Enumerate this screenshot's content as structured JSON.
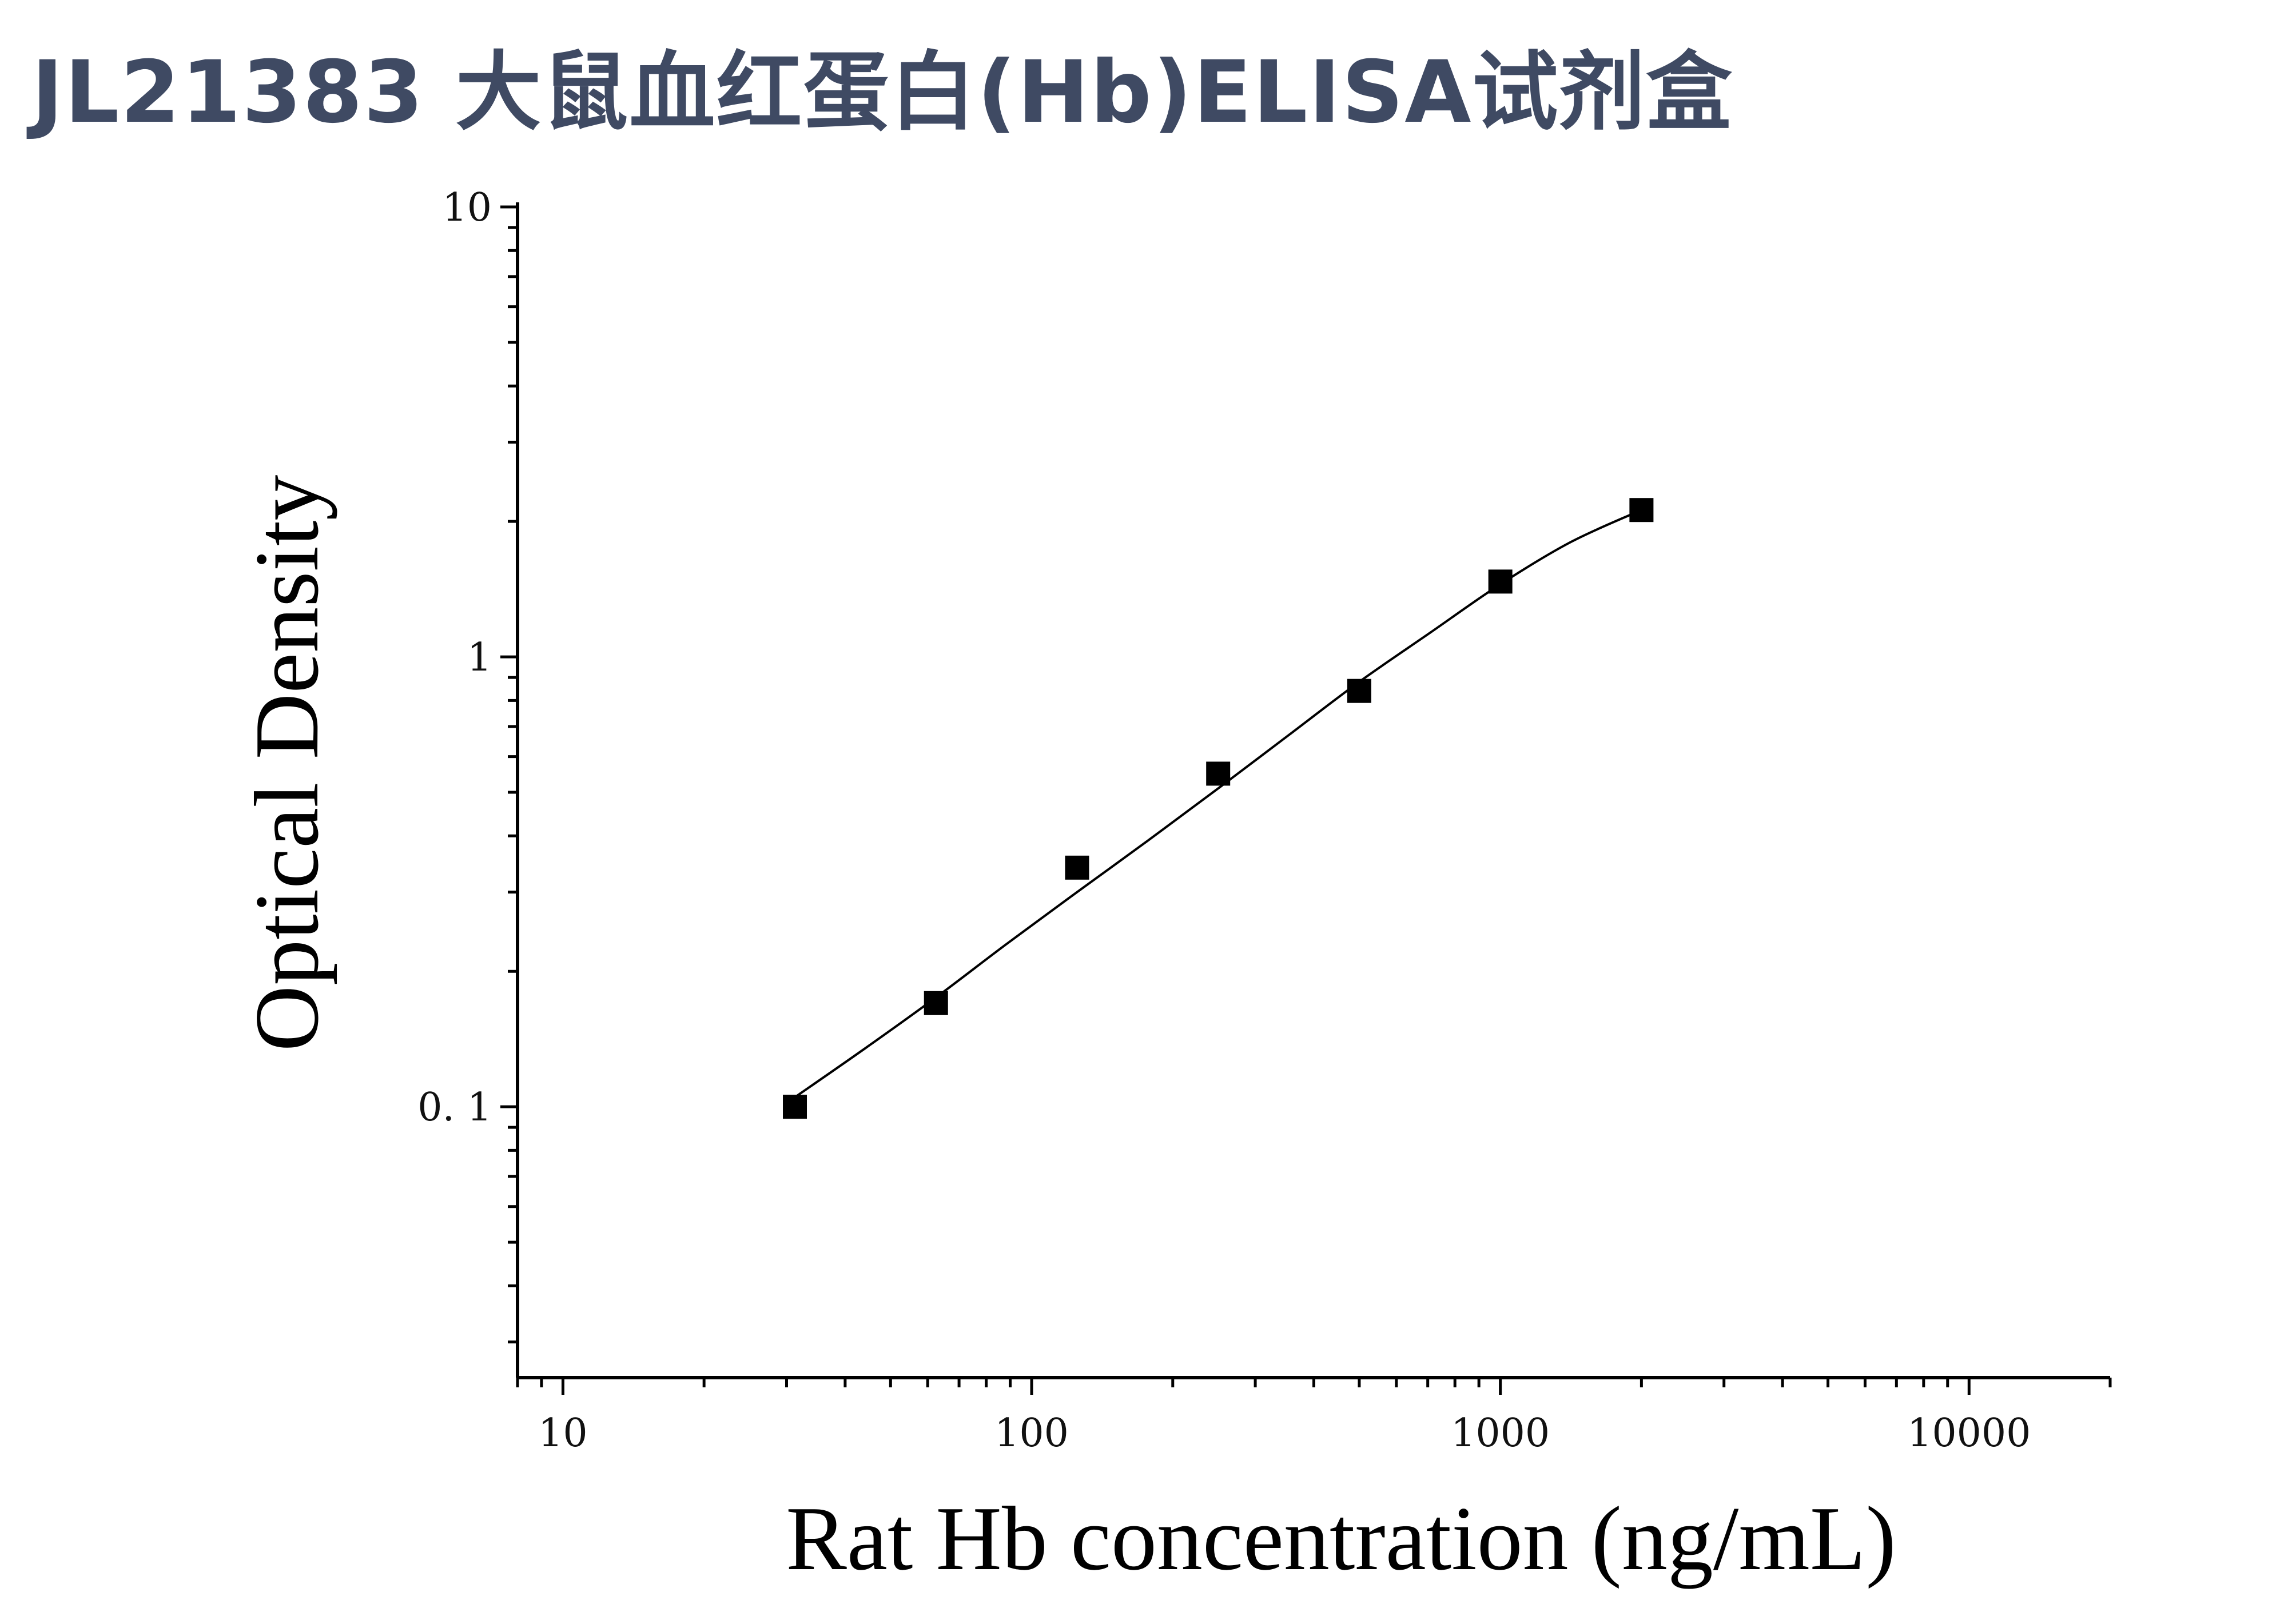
{
  "title": "JL21383 大鼠血红蛋白(Hb)ELISA试剂盒",
  "chart_data": {
    "type": "scatter",
    "xlabel": "Rat Hb concentration (ng/mL)",
    "ylabel": "Optical Density",
    "xscale": "log",
    "yscale": "log",
    "xlim": [
      8,
      20000
    ],
    "ylim": [
      0.025,
      10
    ],
    "x_ticks": [
      {
        "value": 10,
        "label": "10"
      },
      {
        "value": 100,
        "label": "100"
      },
      {
        "value": 1000,
        "label": "1000"
      },
      {
        "value": 10000,
        "label": "10000"
      }
    ],
    "y_ticks": [
      {
        "value": 0.1,
        "label": "0. 1"
      },
      {
        "value": 1,
        "label": "1"
      },
      {
        "value": 10,
        "label": "10"
      }
    ],
    "marker": "square",
    "marker_color": "#000000",
    "points": [
      {
        "x": 31.25,
        "y": 0.1
      },
      {
        "x": 62.5,
        "y": 0.17
      },
      {
        "x": 125,
        "y": 0.34
      },
      {
        "x": 250,
        "y": 0.55
      },
      {
        "x": 500,
        "y": 0.84
      },
      {
        "x": 1000,
        "y": 1.47
      },
      {
        "x": 2000,
        "y": 2.12
      }
    ],
    "fit_curve": [
      {
        "x": 31.25,
        "y": 0.105
      },
      {
        "x": 44.2,
        "y": 0.135
      },
      {
        "x": 62.5,
        "y": 0.175
      },
      {
        "x": 88.4,
        "y": 0.23
      },
      {
        "x": 125,
        "y": 0.3
      },
      {
        "x": 176.8,
        "y": 0.39
      },
      {
        "x": 250,
        "y": 0.51
      },
      {
        "x": 353.6,
        "y": 0.67
      },
      {
        "x": 500,
        "y": 0.88
      },
      {
        "x": 707.1,
        "y": 1.13
      },
      {
        "x": 1000,
        "y": 1.45
      },
      {
        "x": 1414,
        "y": 1.8
      },
      {
        "x": 2000,
        "y": 2.12
      }
    ],
    "grid": false,
    "legend": "none"
  }
}
